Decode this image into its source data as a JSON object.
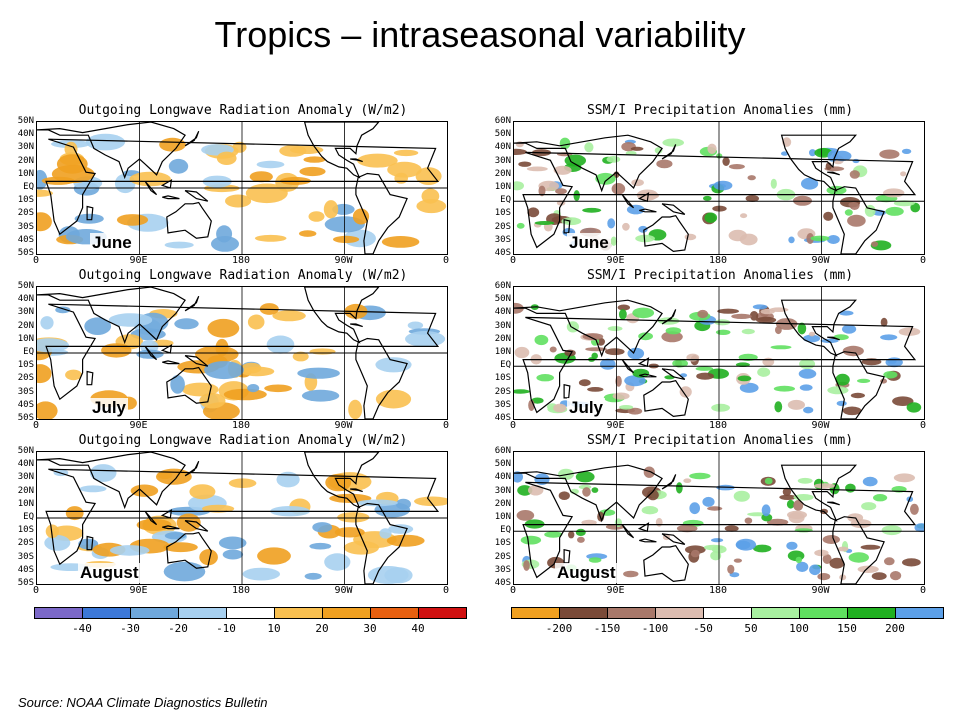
{
  "slide": {
    "title": "Tropics – intraseasonal variability",
    "source": "Source: NOAA Climate Diagnostics Bulletin"
  },
  "olr": {
    "panel_title": "Outgoing Longwave Radiation Anomaly (W/m2)",
    "lat_labels": [
      "50N",
      "40N",
      "30N",
      "20N",
      "10N",
      "EQ",
      "10S",
      "20S",
      "30S",
      "40S",
      "50S"
    ],
    "lon_labels": [
      "0",
      "90E",
      "180",
      "90W",
      "0"
    ],
    "months": [
      "June",
      "July",
      "August"
    ],
    "colorbar": {
      "labels": [
        "-40",
        "-30",
        "-20",
        "-10",
        "10",
        "20",
        "30",
        "40"
      ],
      "colors": [
        "#7b68c8",
        "#3c78d8",
        "#6fa8dc",
        "#a7d0f0",
        "#ffffff",
        "#f9c050",
        "#f0a020",
        "#e86010",
        "#d01010"
      ]
    }
  },
  "precip": {
    "panel_title": "SSM/I Precipitation Anomalies (mm)",
    "lat_labels": [
      "60N",
      "50N",
      "40N",
      "30N",
      "20N",
      "10N",
      "EQ",
      "10S",
      "20S",
      "30S",
      "40S"
    ],
    "lon_labels": [
      "0",
      "90E",
      "180",
      "90W",
      "0"
    ],
    "months": [
      "June",
      "July",
      "August"
    ],
    "colorbar": {
      "labels": [
        "-200",
        "-150",
        "-100",
        "-50",
        "50",
        "100",
        "150",
        "200"
      ],
      "colors": [
        "#f0a020",
        "#7a4a38",
        "#a8786a",
        "#dcbcb0",
        "#ffffff",
        "#a8f0a0",
        "#60e060",
        "#20b020",
        "#5ca0e8"
      ]
    }
  }
}
